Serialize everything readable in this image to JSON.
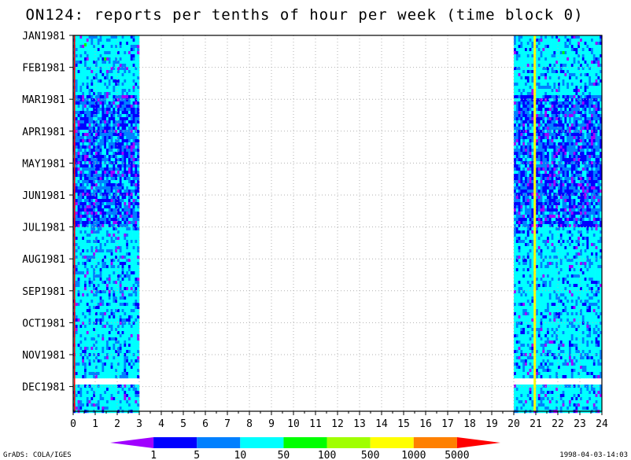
{
  "chart_data": {
    "type": "heatmap",
    "title": "ON124: reports per tenths of hour per week (time block 0)",
    "xlabel": "",
    "ylabel": "",
    "xlim": [
      0,
      24
    ],
    "x_ticks": [
      0,
      1,
      2,
      3,
      4,
      5,
      6,
      7,
      8,
      9,
      10,
      11,
      12,
      13,
      14,
      15,
      16,
      17,
      18,
      19,
      20,
      21,
      22,
      23,
      24
    ],
    "y_ticks": [
      "JAN1981",
      "FEB1981",
      "MAR1981",
      "APR1981",
      "MAY1981",
      "JUN1981",
      "JUL1981",
      "AUG1981",
      "SEP1981",
      "OCT1981",
      "NOV1981",
      "DEC1981"
    ],
    "grid": true,
    "data_blocks": [
      {
        "hours": [
          0,
          3
        ],
        "months": "JAN1981-DEC1981",
        "dominant_level": "10-50",
        "note_level": "5-10 Mar-Jun"
      },
      {
        "hours": [
          20,
          24
        ],
        "months": "JAN1981-DEC1981",
        "dominant_level": "10-50",
        "note_level": "1-10 Mar-Jun"
      },
      {
        "hours": [
          20.9,
          21
        ],
        "months": "JAN1981-DEC1981",
        "dominant_level": "500-1000"
      }
    ],
    "gaps": [
      {
        "months": "late NOV1981 - early DEC1981"
      }
    ],
    "colorbar": {
      "levels": [
        "1",
        "5",
        "10",
        "50",
        "100",
        "500",
        "1000",
        "5000"
      ],
      "colors": [
        "#a000ff",
        "#0000ff",
        "#0080ff",
        "#00ffff",
        "#00ff00",
        "#a0ff00",
        "#ffff00",
        "#ff8000",
        "#ff0000"
      ]
    }
  },
  "footer": {
    "left": "GrADS: COLA/IGES",
    "right": "1998-04-03-14:03"
  }
}
